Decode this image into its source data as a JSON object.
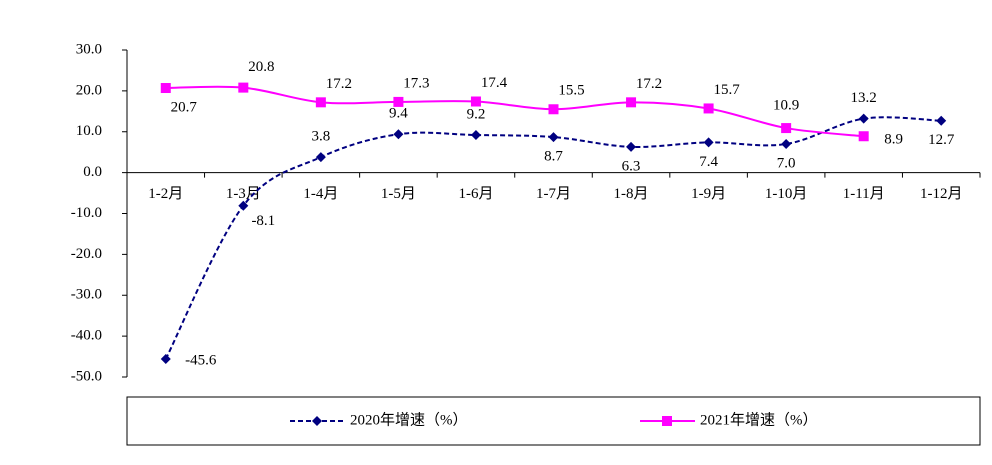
{
  "chart_data": {
    "type": "line",
    "categories": [
      "1-2月",
      "1-3月",
      "1-4月",
      "1-5月",
      "1-6月",
      "1-7月",
      "1-8月",
      "1-9月",
      "1-10月",
      "1-11月",
      "1-12月"
    ],
    "series": [
      {
        "name": "2020年增速（%）",
        "color": "#000080",
        "marker": "diamond",
        "dash": true,
        "values": [
          -45.6,
          -8.1,
          3.8,
          9.4,
          9.2,
          8.7,
          6.3,
          7.4,
          7.0,
          13.2,
          12.7
        ],
        "value_labels": [
          "-45.6",
          "-8.1",
          "3.8",
          "9.4",
          "9.2",
          "8.7",
          "6.3",
          "7.4",
          "7.0",
          "13.2",
          "12.7"
        ]
      },
      {
        "name": "2021年增速（%）",
        "color": "#ff00ff",
        "marker": "square",
        "dash": false,
        "values": [
          20.7,
          20.8,
          17.2,
          17.3,
          17.4,
          15.5,
          17.2,
          15.7,
          10.9,
          8.9,
          null
        ],
        "value_labels": [
          "20.7",
          "20.8",
          "17.2",
          "17.3",
          "17.4",
          "15.5",
          "17.2",
          "15.7",
          "10.9",
          "8.9",
          null
        ]
      }
    ],
    "ylim": [
      -50,
      30
    ],
    "yticks": [
      {
        "value": -50,
        "label": "-50.0"
      },
      {
        "value": -40,
        "label": "-40.0"
      },
      {
        "value": -30,
        "label": "-30.0"
      },
      {
        "value": -20,
        "label": "-20.0"
      },
      {
        "value": -10,
        "label": "-10.0"
      },
      {
        "value": 0,
        "label": "0.0"
      },
      {
        "value": 10,
        "label": "10.0"
      },
      {
        "value": 20,
        "label": "20.0"
      },
      {
        "value": 30,
        "label": "30.0"
      }
    ],
    "legend": "bottom"
  }
}
